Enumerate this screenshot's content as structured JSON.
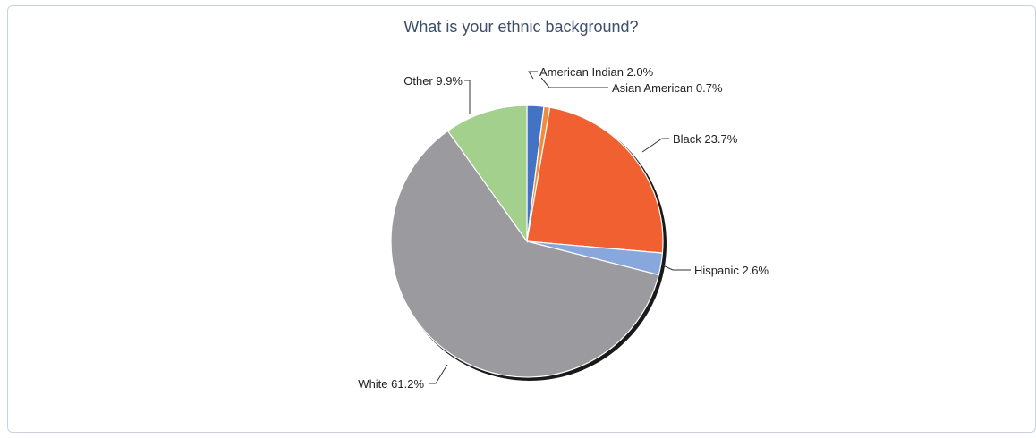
{
  "chart_data": {
    "type": "pie",
    "title": "What is your ethnic background?",
    "slices": [
      {
        "label": "American Indian",
        "value": 2.0,
        "display": "American Indian 2.0%",
        "color": "#4472c4"
      },
      {
        "label": "Asian American",
        "value": 0.7,
        "display": "Asian American 0.7%",
        "color": "#f08c3c"
      },
      {
        "label": "Black",
        "value": 23.7,
        "display": "Black 23.7%",
        "color": "#f06030"
      },
      {
        "label": "Hispanic",
        "value": 2.6,
        "display": "Hispanic 2.6%",
        "color": "#88a8dd"
      },
      {
        "label": "White",
        "value": 61.2,
        "display": "White 61.2%",
        "color": "#9b9a9f"
      },
      {
        "label": "Other",
        "value": 9.9,
        "display": "Other 9.9%",
        "color": "#a4d08e"
      }
    ],
    "legend": "none",
    "label_style": "outside labels with leader lines"
  },
  "colors": {
    "title": "#3c4f69",
    "panel_border": "#c9d3df",
    "pie_stroke": "#ffffff",
    "pie_shadow": "#1a1a1a"
  }
}
